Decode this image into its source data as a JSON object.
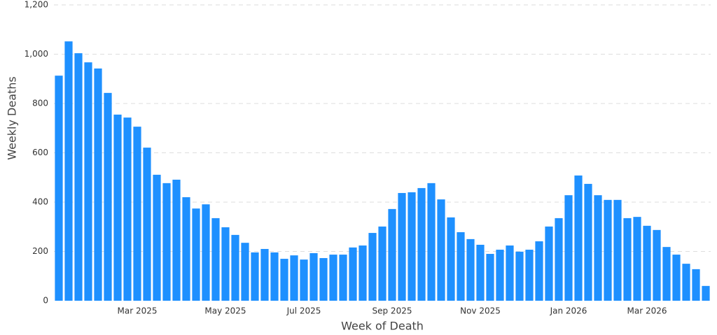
{
  "chart_data": {
    "type": "bar",
    "x_label": "Week of Death",
    "y_label": "Weekly Deaths",
    "color": "#1e90ff",
    "grid": true,
    "categories": [
      null,
      null,
      null,
      null,
      null,
      null,
      null,
      null,
      "Mar 2025",
      null,
      null,
      null,
      null,
      null,
      null,
      null,
      null,
      "May 2025",
      null,
      null,
      null,
      null,
      null,
      null,
      null,
      "Jul 2025",
      null,
      null,
      null,
      null,
      null,
      null,
      null,
      null,
      "Sep 2025",
      null,
      null,
      null,
      null,
      null,
      null,
      null,
      null,
      "Nov 2025",
      null,
      null,
      null,
      null,
      null,
      null,
      null,
      null,
      "Jan 2026",
      null,
      null,
      null,
      null,
      null,
      null,
      null,
      "Mar 2026",
      null,
      null,
      null,
      null,
      null,
      null
    ],
    "values": [
      913,
      1052,
      1004,
      967,
      942,
      843,
      755,
      743,
      706,
      621,
      511,
      477,
      491,
      420,
      374,
      391,
      335,
      298,
      267,
      235,
      196,
      210,
      196,
      170,
      184,
      167,
      193,
      173,
      187,
      187,
      216,
      224,
      275,
      301,
      372,
      437,
      440,
      457,
      477,
      411,
      338,
      278,
      250,
      227,
      190,
      207,
      224,
      199,
      207,
      241,
      301,
      335,
      428,
      508,
      474,
      428,
      409,
      409,
      335,
      340,
      304,
      287,
      218,
      187,
      150,
      128,
      60
    ],
    "ylim": [
      0,
      1200
    ],
    "yticks": [
      0,
      200,
      400,
      600,
      800,
      {
        "value": 1000,
        "label": "1,000"
      },
      {
        "value": 1200,
        "label": "1,200"
      }
    ]
  }
}
